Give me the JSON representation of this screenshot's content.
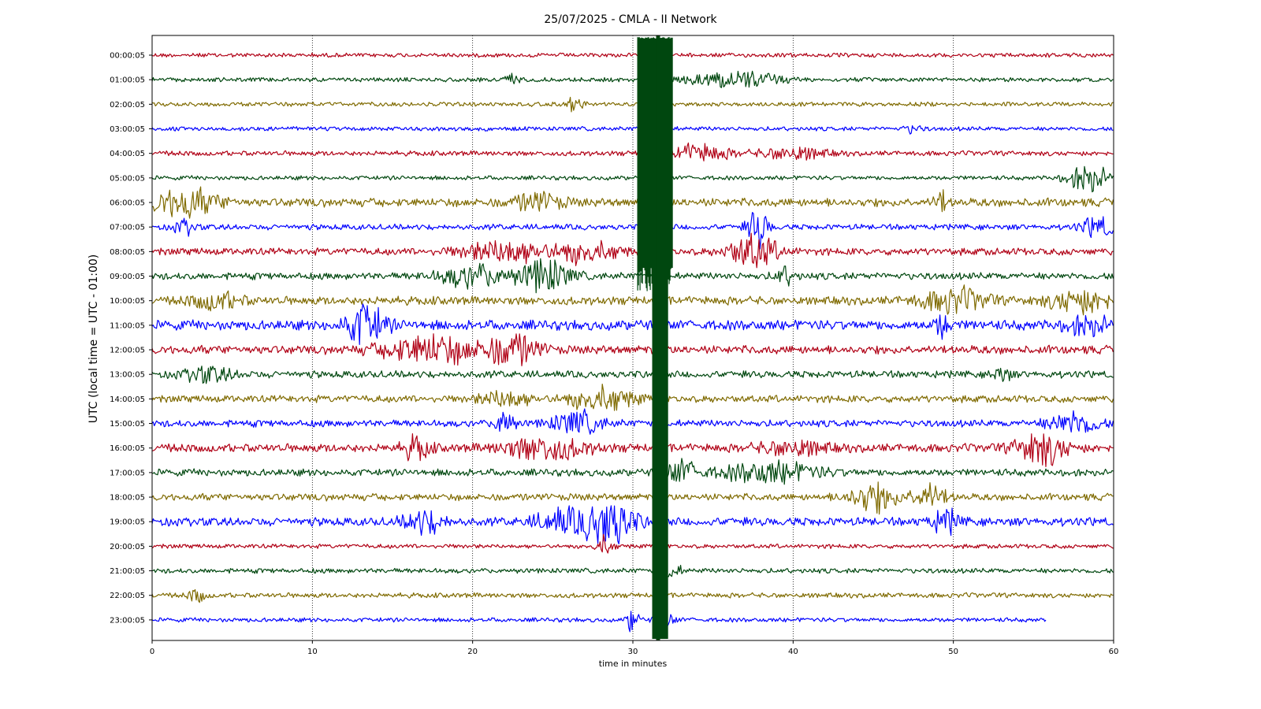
{
  "chart_data": {
    "type": "line",
    "title": "25/07/2025 - CMLA - II Network",
    "xlabel": "time in minutes",
    "ylabel": "UTC (local time = UTC - 01:00)",
    "xlim": [
      0,
      60
    ],
    "x_ticks": [
      0,
      10,
      20,
      30,
      40,
      50,
      60
    ],
    "grid": "vertical-dotted",
    "trace_colors": [
      "#b00015",
      "#00470f",
      "#7f6a00",
      "#0000ff"
    ],
    "rows": [
      {
        "label": "00:00:05",
        "color": "#b00015",
        "amp": 3,
        "end": 60,
        "events": []
      },
      {
        "label": "01:00:05",
        "color": "#00470f",
        "amp": 3,
        "end": 60,
        "events": [
          [
            22.5,
            0.5,
            8
          ],
          [
            36.5,
            2.5,
            14
          ]
        ]
      },
      {
        "label": "02:00:05",
        "color": "#7f6a00",
        "amp": 3,
        "end": 60,
        "events": [
          [
            26.3,
            0.6,
            8
          ]
        ]
      },
      {
        "label": "03:00:05",
        "color": "#0000ff",
        "amp": 3,
        "end": 60,
        "events": [
          [
            47.5,
            0.5,
            6
          ]
        ]
      },
      {
        "label": "04:00:05",
        "color": "#b00015",
        "amp": 3.5,
        "end": 60,
        "events": [
          [
            34,
            2,
            12
          ],
          [
            40,
            2,
            9
          ]
        ]
      },
      {
        "label": "05:00:05",
        "color": "#00470f",
        "amp": 3,
        "end": 60,
        "events": [
          [
            58.5,
            1.3,
            20
          ]
        ]
      },
      {
        "label": "06:00:05",
        "color": "#7f6a00",
        "amp": 6,
        "end": 60,
        "events": [
          [
            2,
            2,
            20
          ],
          [
            24,
            1.5,
            12
          ],
          [
            49.2,
            0.4,
            16
          ]
        ]
      },
      {
        "label": "07:00:05",
        "color": "#0000ff",
        "amp": 4,
        "end": 60,
        "events": [
          [
            2,
            0.6,
            10
          ],
          [
            37.8,
            0.6,
            30
          ],
          [
            59,
            1,
            14
          ]
        ]
      },
      {
        "label": "08:00:05",
        "color": "#b00015",
        "amp": 5,
        "end": 60,
        "events": [
          [
            22,
            2.5,
            16
          ],
          [
            27,
            2,
            14
          ],
          [
            37.5,
            1.5,
            24
          ]
        ]
      },
      {
        "label": "09:00:05",
        "color": "#00470f",
        "amp": 5,
        "end": 60,
        "events": [
          [
            20,
            2,
            16
          ],
          [
            24.5,
            1.5,
            24
          ],
          [
            39.5,
            0.6,
            12
          ]
        ]
      },
      {
        "label": "10:00:05",
        "color": "#7f6a00",
        "amp": 6,
        "end": 60,
        "events": [
          [
            4,
            1.5,
            12
          ],
          [
            50,
            2,
            16
          ],
          [
            58,
            2,
            16
          ]
        ]
      },
      {
        "label": "11:00:05",
        "color": "#0000ff",
        "amp": 7,
        "end": 60,
        "events": [
          [
            13.3,
            1.2,
            30
          ],
          [
            49.3,
            0.4,
            18
          ],
          [
            58.5,
            1.5,
            12
          ]
        ]
      },
      {
        "label": "12:00:05",
        "color": "#b00015",
        "amp": 6,
        "end": 60,
        "events": [
          [
            17.5,
            3,
            20
          ],
          [
            22.5,
            1.5,
            22
          ]
        ]
      },
      {
        "label": "13:00:05",
        "color": "#00470f",
        "amp": 5,
        "end": 60,
        "events": [
          [
            3.5,
            1.5,
            10
          ],
          [
            53,
            0.5,
            12
          ]
        ]
      },
      {
        "label": "14:00:05",
        "color": "#7f6a00",
        "amp": 5,
        "end": 60,
        "events": [
          [
            22,
            1.5,
            12
          ],
          [
            28,
            2,
            16
          ]
        ]
      },
      {
        "label": "15:00:05",
        "color": "#0000ff",
        "amp": 5,
        "end": 60,
        "events": [
          [
            22,
            0.5,
            22
          ],
          [
            26.5,
            1.5,
            16
          ],
          [
            57.5,
            1.5,
            16
          ]
        ]
      },
      {
        "label": "16:00:05",
        "color": "#b00015",
        "amp": 6,
        "end": 60,
        "events": [
          [
            16.5,
            0.8,
            16
          ],
          [
            24.5,
            2.5,
            16
          ],
          [
            40,
            2,
            10
          ],
          [
            55.5,
            1.5,
            24
          ]
        ]
      },
      {
        "label": "17:00:05",
        "color": "#00470f",
        "amp": 5,
        "end": 60,
        "events": [
          [
            33,
            1,
            16
          ],
          [
            38.5,
            3,
            14
          ]
        ]
      },
      {
        "label": "18:00:05",
        "color": "#7f6a00",
        "amp": 5,
        "end": 60,
        "events": [
          [
            45,
            1.5,
            20
          ],
          [
            48.5,
            1,
            18
          ]
        ]
      },
      {
        "label": "19:00:05",
        "color": "#0000ff",
        "amp": 6,
        "end": 60,
        "events": [
          [
            17,
            1.2,
            16
          ],
          [
            25.5,
            1.5,
            16
          ],
          [
            28.5,
            1.5,
            36
          ],
          [
            49.5,
            0.8,
            16
          ]
        ]
      },
      {
        "label": "20:00:05",
        "color": "#b00015",
        "amp": 3,
        "end": 60,
        "events": [
          [
            28.2,
            0.5,
            14
          ]
        ]
      },
      {
        "label": "21:00:05",
        "color": "#00470f",
        "amp": 3.5,
        "end": 60,
        "events": [
          [
            32.5,
            0.5,
            10
          ]
        ]
      },
      {
        "label": "22:00:05",
        "color": "#7f6a00",
        "amp": 3.5,
        "end": 60,
        "events": [
          [
            2.8,
            0.5,
            10
          ]
        ]
      },
      {
        "label": "23:00:05",
        "color": "#0000ff",
        "amp": 3,
        "end": 55.8,
        "events": [
          [
            30,
            0.3,
            24
          ],
          [
            32,
            0.6,
            10
          ]
        ]
      }
    ],
    "saturated_event": {
      "color": "#00470f",
      "start": 30.3,
      "end": 32.5
    }
  }
}
